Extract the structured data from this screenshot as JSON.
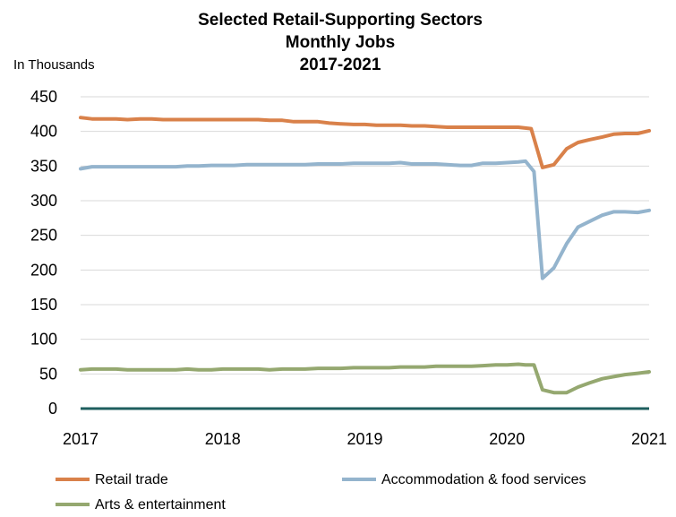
{
  "chart_data": {
    "type": "line",
    "title_lines": [
      "Selected Retail-Supporting  Sectors",
      "Monthly Jobs",
      "2017-2021"
    ],
    "ylabel": "In Thousands",
    "xlabel": "",
    "ylim": [
      0,
      450
    ],
    "yticks": [
      "0",
      "50",
      "100",
      "150",
      "200",
      "250",
      "300",
      "350",
      "400",
      "450"
    ],
    "xlim": [
      2017,
      2021
    ],
    "xticks": [
      "2017",
      "2018",
      "2019",
      "2020",
      "2021"
    ],
    "grid": true,
    "legend_position": "bottom",
    "zero_line_color": "#1f5f5f",
    "series": [
      {
        "name": "Retail trade",
        "color": "#d9814a",
        "points": [
          [
            2017.0,
            420
          ],
          [
            2017.08,
            418
          ],
          [
            2017.17,
            418
          ],
          [
            2017.25,
            418
          ],
          [
            2017.33,
            417
          ],
          [
            2017.42,
            418
          ],
          [
            2017.5,
            418
          ],
          [
            2017.58,
            417
          ],
          [
            2017.67,
            417
          ],
          [
            2017.75,
            417
          ],
          [
            2017.83,
            417
          ],
          [
            2017.92,
            417
          ],
          [
            2018.0,
            417
          ],
          [
            2018.08,
            417
          ],
          [
            2018.17,
            417
          ],
          [
            2018.25,
            417
          ],
          [
            2018.33,
            416
          ],
          [
            2018.42,
            416
          ],
          [
            2018.5,
            414
          ],
          [
            2018.58,
            414
          ],
          [
            2018.67,
            414
          ],
          [
            2018.75,
            412
          ],
          [
            2018.83,
            411
          ],
          [
            2018.92,
            410
          ],
          [
            2019.0,
            410
          ],
          [
            2019.08,
            409
          ],
          [
            2019.17,
            409
          ],
          [
            2019.25,
            409
          ],
          [
            2019.33,
            408
          ],
          [
            2019.42,
            408
          ],
          [
            2019.5,
            407
          ],
          [
            2019.58,
            406
          ],
          [
            2019.67,
            406
          ],
          [
            2019.75,
            406
          ],
          [
            2019.83,
            406
          ],
          [
            2019.92,
            406
          ],
          [
            2020.0,
            406
          ],
          [
            2020.08,
            406
          ],
          [
            2020.17,
            404
          ],
          [
            2020.25,
            348
          ],
          [
            2020.33,
            352
          ],
          [
            2020.42,
            375
          ],
          [
            2020.5,
            384
          ],
          [
            2020.58,
            388
          ],
          [
            2020.67,
            392
          ],
          [
            2020.75,
            396
          ],
          [
            2020.83,
            397
          ],
          [
            2020.92,
            397
          ],
          [
            2021.0,
            401
          ]
        ]
      },
      {
        "name": "Accommodation & food services",
        "color": "#94b4cd",
        "points": [
          [
            2017.0,
            346
          ],
          [
            2017.08,
            349
          ],
          [
            2017.17,
            349
          ],
          [
            2017.25,
            349
          ],
          [
            2017.33,
            349
          ],
          [
            2017.42,
            349
          ],
          [
            2017.5,
            349
          ],
          [
            2017.58,
            349
          ],
          [
            2017.67,
            349
          ],
          [
            2017.75,
            350
          ],
          [
            2017.83,
            350
          ],
          [
            2017.92,
            351
          ],
          [
            2018.0,
            351
          ],
          [
            2018.08,
            351
          ],
          [
            2018.17,
            352
          ],
          [
            2018.25,
            352
          ],
          [
            2018.33,
            352
          ],
          [
            2018.42,
            352
          ],
          [
            2018.5,
            352
          ],
          [
            2018.58,
            352
          ],
          [
            2018.67,
            353
          ],
          [
            2018.75,
            353
          ],
          [
            2018.83,
            353
          ],
          [
            2018.92,
            354
          ],
          [
            2019.0,
            354
          ],
          [
            2019.08,
            354
          ],
          [
            2019.17,
            354
          ],
          [
            2019.25,
            355
          ],
          [
            2019.33,
            353
          ],
          [
            2019.42,
            353
          ],
          [
            2019.5,
            353
          ],
          [
            2019.58,
            352
          ],
          [
            2019.67,
            351
          ],
          [
            2019.75,
            351
          ],
          [
            2019.83,
            354
          ],
          [
            2019.92,
            354
          ],
          [
            2020.0,
            355
          ],
          [
            2020.08,
            356
          ],
          [
            2020.13,
            357
          ],
          [
            2020.19,
            342
          ],
          [
            2020.25,
            188
          ],
          [
            2020.33,
            203
          ],
          [
            2020.42,
            238
          ],
          [
            2020.5,
            262
          ],
          [
            2020.58,
            270
          ],
          [
            2020.67,
            279
          ],
          [
            2020.75,
            284
          ],
          [
            2020.83,
            284
          ],
          [
            2020.92,
            283
          ],
          [
            2021.0,
            286
          ]
        ]
      },
      {
        "name": "Arts & entertainment",
        "color": "#95a870",
        "points": [
          [
            2017.0,
            56
          ],
          [
            2017.08,
            57
          ],
          [
            2017.17,
            57
          ],
          [
            2017.25,
            57
          ],
          [
            2017.33,
            56
          ],
          [
            2017.42,
            56
          ],
          [
            2017.5,
            56
          ],
          [
            2017.58,
            56
          ],
          [
            2017.67,
            56
          ],
          [
            2017.75,
            57
          ],
          [
            2017.83,
            56
          ],
          [
            2017.92,
            56
          ],
          [
            2018.0,
            57
          ],
          [
            2018.08,
            57
          ],
          [
            2018.17,
            57
          ],
          [
            2018.25,
            57
          ],
          [
            2018.33,
            56
          ],
          [
            2018.42,
            57
          ],
          [
            2018.5,
            57
          ],
          [
            2018.58,
            57
          ],
          [
            2018.67,
            58
          ],
          [
            2018.75,
            58
          ],
          [
            2018.83,
            58
          ],
          [
            2018.92,
            59
          ],
          [
            2019.0,
            59
          ],
          [
            2019.08,
            59
          ],
          [
            2019.17,
            59
          ],
          [
            2019.25,
            60
          ],
          [
            2019.33,
            60
          ],
          [
            2019.42,
            60
          ],
          [
            2019.5,
            61
          ],
          [
            2019.58,
            61
          ],
          [
            2019.67,
            61
          ],
          [
            2019.75,
            61
          ],
          [
            2019.83,
            62
          ],
          [
            2019.92,
            63
          ],
          [
            2020.0,
            63
          ],
          [
            2020.08,
            64
          ],
          [
            2020.13,
            63
          ],
          [
            2020.19,
            63
          ],
          [
            2020.25,
            27
          ],
          [
            2020.33,
            23
          ],
          [
            2020.42,
            23
          ],
          [
            2020.5,
            31
          ],
          [
            2020.58,
            37
          ],
          [
            2020.67,
            43
          ],
          [
            2020.75,
            46
          ],
          [
            2020.83,
            49
          ],
          [
            2020.92,
            51
          ],
          [
            2021.0,
            53
          ]
        ]
      }
    ]
  }
}
